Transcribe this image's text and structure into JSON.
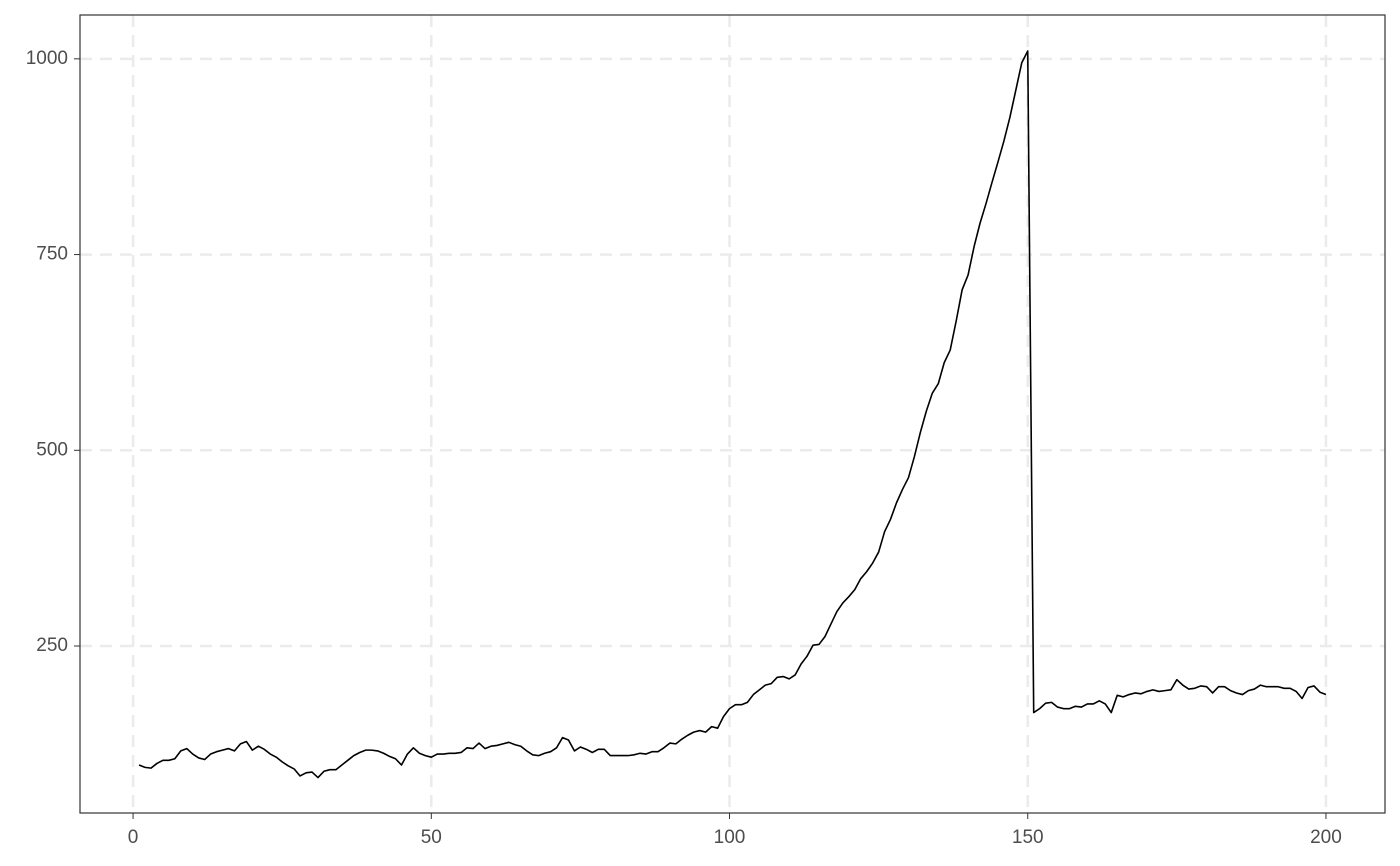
{
  "chart_data": {
    "type": "line",
    "x": [
      1,
      2,
      3,
      4,
      5,
      6,
      7,
      8,
      9,
      10,
      11,
      12,
      13,
      14,
      15,
      16,
      17,
      18,
      19,
      20,
      21,
      22,
      23,
      24,
      25,
      26,
      27,
      28,
      29,
      30,
      31,
      32,
      33,
      34,
      35,
      36,
      37,
      38,
      39,
      40,
      41,
      42,
      43,
      44,
      45,
      46,
      47,
      48,
      49,
      50,
      51,
      52,
      53,
      54,
      55,
      56,
      57,
      58,
      59,
      60,
      61,
      62,
      63,
      64,
      65,
      66,
      67,
      68,
      69,
      70,
      71,
      72,
      73,
      74,
      75,
      76,
      77,
      78,
      79,
      80,
      81,
      82,
      83,
      84,
      85,
      86,
      87,
      88,
      89,
      90,
      91,
      92,
      93,
      94,
      95,
      96,
      97,
      98,
      99,
      100,
      101,
      102,
      103,
      104,
      105,
      106,
      107,
      108,
      109,
      110,
      111,
      112,
      113,
      114,
      115,
      116,
      117,
      118,
      119,
      120,
      121,
      122,
      123,
      124,
      125,
      126,
      127,
      128,
      129,
      130,
      131,
      132,
      133,
      134,
      135,
      136,
      137,
      138,
      139,
      140,
      141,
      142,
      143,
      144,
      145,
      146,
      147,
      148,
      149,
      150,
      151,
      152,
      153,
      154,
      155,
      156,
      157,
      158,
      159,
      160,
      161,
      162,
      163,
      164,
      165,
      166,
      167,
      168,
      169,
      170,
      171,
      172,
      173,
      174,
      175,
      176,
      177,
      178,
      179,
      180,
      181,
      182,
      183,
      184,
      185,
      186,
      187,
      188,
      189,
      190,
      191,
      192,
      193,
      194,
      195,
      196,
      197,
      198,
      199,
      200
    ],
    "series": [
      {
        "color": "#000000",
        "values": [
          98,
          95,
          94,
          100,
          104,
          104,
          106,
          116,
          119,
          112,
          107,
          105,
          112,
          115,
          117,
          119,
          116,
          125,
          128,
          117,
          122,
          118,
          112,
          108,
          102,
          97,
          93,
          84,
          88,
          89,
          82,
          90,
          92,
          92,
          98,
          104,
          110,
          114,
          117,
          117,
          116,
          113,
          109,
          106,
          98,
          112,
          120,
          113,
          110,
          108,
          112,
          112,
          113,
          113,
          114,
          120,
          119,
          126,
          119,
          122,
          123,
          125,
          127,
          124,
          122,
          116,
          111,
          110,
          113,
          115,
          120,
          133,
          130,
          116,
          121,
          118,
          114,
          118,
          118,
          110,
          110,
          110,
          110,
          111,
          113,
          112,
          115,
          115,
          120,
          126,
          125,
          131,
          136,
          140,
          142,
          140,
          147,
          145,
          160,
          170,
          175,
          175,
          178,
          188,
          194,
          200,
          202,
          210,
          211,
          208,
          213,
          227,
          237,
          251,
          252,
          262,
          278,
          294,
          305,
          313,
          322,
          336,
          345,
          356,
          370,
          396,
          412,
          433,
          450,
          465,
          492,
          523,
          550,
          573,
          585,
          612,
          628,
          665,
          705,
          724,
          760,
          790,
          815,
          842,
          868,
          895,
          925,
          960,
          995,
          1010,
          165,
          170,
          177,
          178,
          172,
          170,
          170,
          173,
          172,
          176,
          176,
          180,
          176,
          165,
          187,
          185,
          188,
          190,
          189,
          192,
          194,
          192,
          193,
          194,
          207,
          200,
          195,
          196,
          199,
          198,
          190,
          198,
          198,
          193,
          190,
          188,
          193,
          195,
          200,
          198,
          198,
          198,
          196,
          196,
          192,
          183,
          197,
          199,
          191,
          188
        ]
      }
    ],
    "xlim": [
      -8.9,
      209.9
    ],
    "ylim": [
      36.7,
      1056
    ],
    "xticks": [
      0,
      50,
      100,
      150,
      200
    ],
    "yticks": [
      250,
      500,
      750,
      1000
    ],
    "grid": true
  }
}
